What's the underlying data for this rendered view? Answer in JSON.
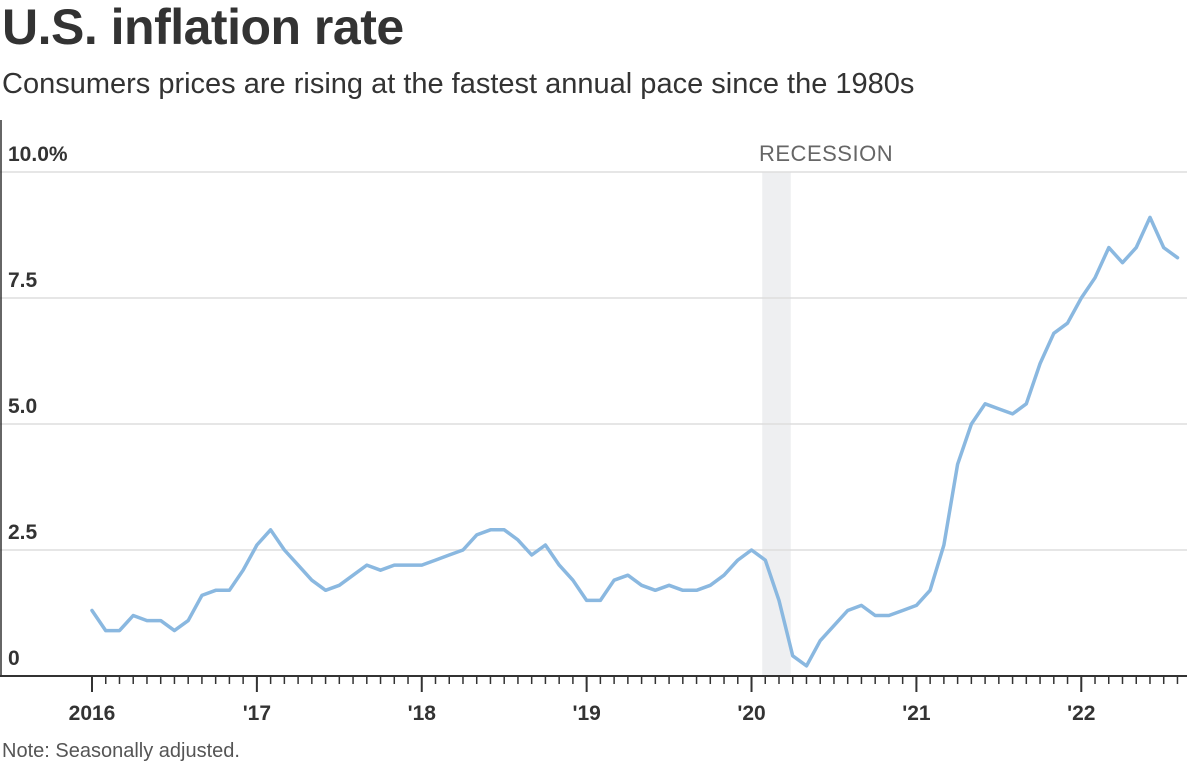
{
  "header": {
    "title": "U.S. inflation rate",
    "subtitle": "Consumers prices are rising at the fastest annual pace since the 1980s"
  },
  "footer": {
    "note": "Note: Seasonally adjusted."
  },
  "colors": {
    "line": "#8ab8e0",
    "recession": "#eeeff1",
    "grid": "#dddddd",
    "axis": "#333333"
  },
  "chart_data": {
    "type": "line",
    "title": "U.S. inflation rate",
    "subtitle": "Consumers prices are rising at the fastest annual pace since the 1980s",
    "ylim": [
      0,
      10
    ],
    "yticks": [
      {
        "value": 10,
        "label": "10.0%"
      },
      {
        "value": 7.5,
        "label": "7.5"
      },
      {
        "value": 5,
        "label": "5.0"
      },
      {
        "value": 2.5,
        "label": "2.5"
      },
      {
        "value": 0,
        "label": "0"
      }
    ],
    "xticks": [
      {
        "value": "2016-01",
        "label": "2016"
      },
      {
        "value": "2017-01",
        "label": "'17"
      },
      {
        "value": "2018-01",
        "label": "'18"
      },
      {
        "value": "2019-01",
        "label": "'19"
      },
      {
        "value": "2020-01",
        "label": "'20"
      },
      {
        "value": "2021-01",
        "label": "'21"
      },
      {
        "value": "2022-01",
        "label": "'22"
      }
    ],
    "xlim": [
      "2016-01",
      "2022-08"
    ],
    "grid": true,
    "recession": {
      "start": "2020-02",
      "end": "2020-04",
      "label": "RECESSION"
    },
    "series": [
      {
        "x": [
          "2016-01",
          "2016-02",
          "2016-03",
          "2016-04",
          "2016-05",
          "2016-06",
          "2016-07",
          "2016-08",
          "2016-09",
          "2016-10",
          "2016-11",
          "2016-12",
          "2017-01",
          "2017-02",
          "2017-03",
          "2017-04",
          "2017-05",
          "2017-06",
          "2017-07",
          "2017-08",
          "2017-09",
          "2017-10",
          "2017-11",
          "2017-12",
          "2018-01",
          "2018-02",
          "2018-03",
          "2018-04",
          "2018-05",
          "2018-06",
          "2018-07",
          "2018-08",
          "2018-09",
          "2018-10",
          "2018-11",
          "2018-12",
          "2019-01",
          "2019-02",
          "2019-03",
          "2019-04",
          "2019-05",
          "2019-06",
          "2019-07",
          "2019-08",
          "2019-09",
          "2019-10",
          "2019-11",
          "2019-12",
          "2020-01",
          "2020-02",
          "2020-03",
          "2020-04",
          "2020-05",
          "2020-06",
          "2020-07",
          "2020-08",
          "2020-09",
          "2020-10",
          "2020-11",
          "2020-12",
          "2021-01",
          "2021-02",
          "2021-03",
          "2021-04",
          "2021-05",
          "2021-06",
          "2021-07",
          "2021-08",
          "2021-09",
          "2021-10",
          "2021-11",
          "2021-12",
          "2022-01",
          "2022-02",
          "2022-03",
          "2022-04",
          "2022-05",
          "2022-06",
          "2022-07",
          "2022-08"
        ],
        "values": [
          1.3,
          0.9,
          0.9,
          1.2,
          1.1,
          1.1,
          0.9,
          1.1,
          1.6,
          1.7,
          1.7,
          2.1,
          2.6,
          2.9,
          2.5,
          2.2,
          1.9,
          1.7,
          1.8,
          2.0,
          2.2,
          2.1,
          2.2,
          2.2,
          2.2,
          2.3,
          2.4,
          2.5,
          2.8,
          2.9,
          2.9,
          2.7,
          2.4,
          2.6,
          2.2,
          1.9,
          1.5,
          1.5,
          1.9,
          2.0,
          1.8,
          1.7,
          1.8,
          1.7,
          1.7,
          1.8,
          2.0,
          2.3,
          2.5,
          2.3,
          1.5,
          0.4,
          0.2,
          0.7,
          1.0,
          1.3,
          1.4,
          1.2,
          1.2,
          1.3,
          1.4,
          1.7,
          2.6,
          4.2,
          5.0,
          5.4,
          5.3,
          5.2,
          5.4,
          6.2,
          6.8,
          7.0,
          7.5,
          7.9,
          8.5,
          8.2,
          8.5,
          9.1,
          8.5,
          8.3
        ]
      }
    ]
  }
}
